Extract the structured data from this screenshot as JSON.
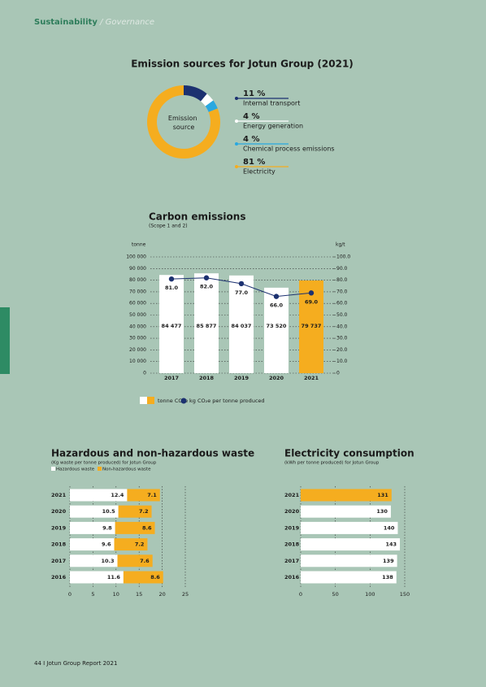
{
  "header": {
    "section": "Sustainability",
    "subsection": "/ Governance"
  },
  "footer": "44 I Jotun Group Report 2021",
  "chart_data": [
    {
      "type": "donut",
      "title": "Emission sources for Jotun Group (2021)",
      "center_label": "Emission source",
      "categories": [
        "Internal transport",
        "Energy generation",
        "Chemical process emissions",
        "Electricity"
      ],
      "values": [
        11,
        4,
        4,
        81
      ],
      "value_labels": [
        "11 %",
        "4 %",
        "4 %",
        "81 %"
      ],
      "colors": [
        "#1c3170",
        "#ffffff",
        "#29a8e0",
        "#f5ad1f"
      ]
    },
    {
      "type": "bar",
      "title": "Carbon emissions",
      "subtitle": "(Scope 1 and 2)",
      "ylabel": "tonne",
      "y2label": "kg/t",
      "categories": [
        "2017",
        "2018",
        "2019",
        "2020",
        "2021"
      ],
      "series": [
        {
          "name": "tonne CO₂e",
          "colors": [
            "#ffffff",
            "#ffffff",
            "#ffffff",
            "#ffffff",
            "#f5ad1f"
          ],
          "values": [
            84477,
            85877,
            84037,
            73520,
            79737
          ],
          "value_labels": [
            "84 477",
            "85 877",
            "84 037",
            "73 520",
            "79 737"
          ]
        },
        {
          "name": "kg CO₂e per tonne produced",
          "color": "#1c3170",
          "axis": "y2",
          "type": "line",
          "values": [
            81,
            82,
            77,
            66,
            69
          ],
          "value_labels": [
            "81.0",
            "82.0",
            "77.0",
            "66.0",
            "69.0"
          ]
        }
      ],
      "ylim": [
        0,
        100000
      ],
      "yticks": [
        0,
        {
          "value": 10000,
          "label": "10 000"
        },
        {
          "value": 20000,
          "label": "20 000"
        },
        {
          "value": 30000,
          "label": "30 000"
        },
        {
          "value": 40000,
          "label": "40 000"
        },
        {
          "value": 50000,
          "label": "50 000"
        },
        {
          "value": 60000,
          "label": "60 000"
        },
        {
          "value": 70000,
          "label": "70 000"
        },
        {
          "value": 80000,
          "label": "80 000"
        },
        {
          "value": 90000,
          "label": "90 000"
        },
        {
          "value": 100000,
          "label": "100 000"
        }
      ],
      "y2lim": [
        0,
        100
      ],
      "y2ticks": [
        0,
        {
          "value": 10,
          "label": "10.0"
        },
        {
          "value": 20,
          "label": "20.0"
        },
        {
          "value": 30,
          "label": "30.0"
        },
        {
          "value": 40,
          "label": "40.0"
        },
        {
          "value": 50,
          "label": "50.0"
        },
        {
          "value": 60,
          "label": "60.0"
        },
        {
          "value": 70,
          "label": "70.0"
        },
        {
          "value": 80,
          "label": "80.0"
        },
        {
          "value": 90,
          "label": "90.0"
        },
        {
          "value": 100,
          "label": "100.0"
        }
      ],
      "grid": true
    },
    {
      "type": "stacked_barh",
      "title": "Hazardous and non-hazardous waste",
      "subtitle": "(Kg waste per tonne produced) for Jotun Group",
      "categories": [
        "2021",
        "2020",
        "2019",
        "2018",
        "2017",
        "2016"
      ],
      "series": [
        {
          "name": "Hazardous waste",
          "color": "#ffffff",
          "values": [
            12.4,
            10.5,
            9.8,
            9.6,
            10.3,
            11.6
          ]
        },
        {
          "name": "Non-hazardous waste",
          "color": "#f5ad1f",
          "values": [
            7.1,
            7.2,
            8.6,
            7.2,
            7.6,
            8.6
          ]
        }
      ],
      "xlim": [
        0,
        25
      ],
      "xticks": [
        0,
        5,
        10,
        15,
        20,
        25
      ],
      "grid": true
    },
    {
      "type": "barh",
      "title": "Electricity consumption",
      "subtitle": "(kWh per tonne produced) for Jotun Group",
      "categories": [
        "2021",
        "2020",
        "2019",
        "2018",
        "2017",
        "2016"
      ],
      "values": [
        131,
        130,
        140,
        143,
        139,
        138
      ],
      "colors": [
        "#f5ad1f",
        "#ffffff",
        "#ffffff",
        "#ffffff",
        "#ffffff",
        "#ffffff"
      ],
      "xlim": [
        0,
        150
      ],
      "xticks": [
        0,
        50,
        100,
        150
      ],
      "grid": true
    }
  ]
}
